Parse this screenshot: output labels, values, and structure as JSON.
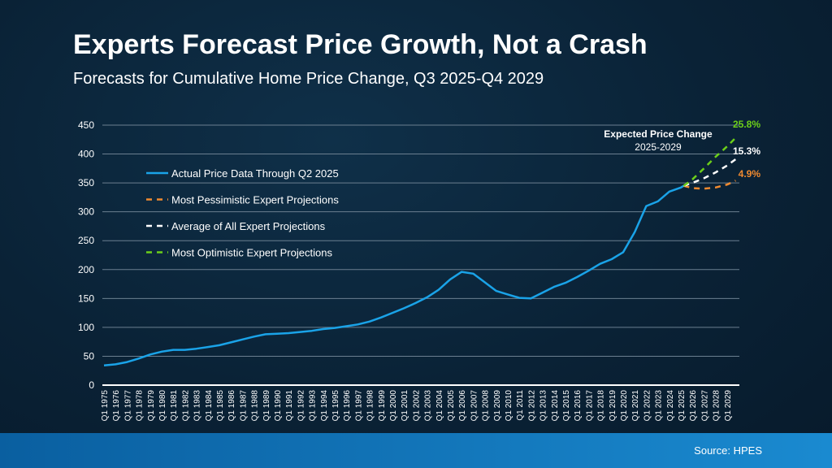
{
  "title": "Experts Forecast Price Growth, Not a Crash",
  "subtitle": "Forecasts for Cumulative Home Price Change, Q3 2025-Q4 2029",
  "source": "Source: HPES",
  "chart_data": {
    "type": "line",
    "ylim": [
      0,
      450
    ],
    "yticks": [
      0,
      50,
      100,
      150,
      200,
      250,
      300,
      350,
      400,
      450
    ],
    "grid": true,
    "legend_placement": "left",
    "xtick_labels": [
      "Q1 1975",
      "Q1 1976",
      "Q1 1977",
      "Q1 1978",
      "Q1 1979",
      "Q1 1980",
      "Q1 1981",
      "Q1 1982",
      "Q1 1983",
      "Q1 1984",
      "Q1 1985",
      "Q1 1986",
      "Q1 1987",
      "Q1 1988",
      "Q1 1989",
      "Q1 1990",
      "Q1 1991",
      "Q1 1992",
      "Q1 1993",
      "Q1 1994",
      "Q1 1995",
      "Q1 1996",
      "Q1 1997",
      "Q1 1998",
      "Q1 1999",
      "Q1 2000",
      "Q1 2001",
      "Q1 2002",
      "Q1 2003",
      "Q1 2004",
      "Q1 2005",
      "Q1 2006",
      "Q1 2007",
      "Q1 2008",
      "Q1 2009",
      "Q1 2010",
      "Q1 2011",
      "Q1 2012",
      "Q1 2013",
      "Q1 2014",
      "Q1 2015",
      "Q1 2016",
      "Q1 2017",
      "Q1 2018",
      "Q1 2019",
      "Q1 2020",
      "Q1 2021",
      "Q1 2022",
      "Q1 2023",
      "Q1 2024",
      "Q1 2025",
      "Q1 2026",
      "Q1 2027",
      "Q1 2028",
      "Q1 2029"
    ],
    "annotation": {
      "title": "Expected Price Change",
      "subtitle": "2025-2029"
    },
    "series": [
      {
        "name": "Actual Price Data Through Q2 2025",
        "color": "#1aa3e8",
        "style": "solid",
        "x": [
          1975,
          1976,
          1977,
          1978,
          1979,
          1980,
          1981,
          1982,
          1983,
          1984,
          1985,
          1986,
          1987,
          1988,
          1989,
          1990,
          1991,
          1992,
          1993,
          1994,
          1995,
          1996,
          1997,
          1998,
          1999,
          2000,
          2001,
          2002,
          2003,
          2004,
          2005,
          2006,
          2007,
          2008,
          2009,
          2010,
          2011,
          2012,
          2013,
          2014,
          2015,
          2016,
          2017,
          2018,
          2019,
          2020,
          2021,
          2022,
          2023,
          2024,
          2025,
          2025.25
        ],
        "y": [
          34,
          36,
          40,
          46,
          53,
          58,
          61,
          61,
          63,
          66,
          69,
          74,
          79,
          84,
          88,
          89,
          90,
          92,
          94,
          97,
          99,
          102,
          105,
          110,
          117,
          125,
          133,
          142,
          152,
          165,
          183,
          196,
          193,
          178,
          163,
          157,
          151,
          150,
          160,
          170,
          177,
          187,
          198,
          210,
          218,
          230,
          265,
          310,
          318,
          335,
          342,
          345
        ]
      },
      {
        "name": "Most Pessimistic Expert Projections",
        "color": "#f08a30",
        "style": "dashed",
        "end_label": "4.9%",
        "x": [
          2025.25,
          2026,
          2027,
          2028,
          2029,
          2029.75
        ],
        "y": [
          345,
          341,
          340,
          342,
          347,
          354
        ]
      },
      {
        "name": "Average of All Expert Projections",
        "color": "#ffffff",
        "style": "dashed",
        "end_label": "15.3%",
        "x": [
          2025.25,
          2026,
          2027,
          2028,
          2029,
          2029.75
        ],
        "y": [
          345,
          350,
          358,
          368,
          380,
          391
        ]
      },
      {
        "name": "Most Optimistic Expert Projections",
        "color": "#6ccf1a",
        "style": "dashed",
        "end_label": "25.8%",
        "x": [
          2025.25,
          2026,
          2027,
          2028,
          2029,
          2029.75
        ],
        "y": [
          345,
          356,
          375,
          395,
          413,
          428
        ]
      }
    ]
  }
}
